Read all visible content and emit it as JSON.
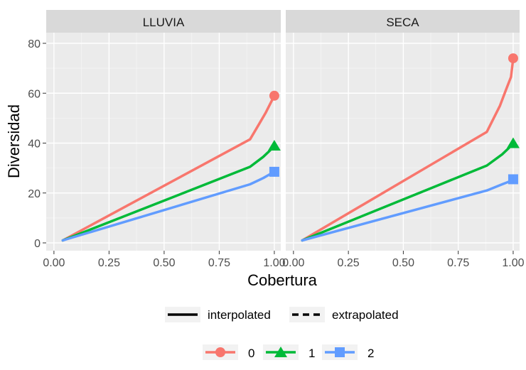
{
  "chart_data": {
    "type": "line",
    "xlabel": "Cobertura",
    "ylabel": "Diversidad",
    "xlim": [
      0.0,
      1.0
    ],
    "ylim": [
      0,
      85
    ],
    "x_ticks": [
      "0.00",
      "0.25",
      "0.50",
      "0.75",
      "1.00"
    ],
    "y_ticks": [
      "0",
      "20",
      "40",
      "60",
      "80"
    ],
    "grid": true,
    "legend_position": "bottom",
    "method_legend": [
      "interpolated",
      "extrapolated"
    ],
    "group_legend": [
      "0",
      "1",
      "2"
    ],
    "colors": {
      "0": "#F8766D",
      "1": "#00BA38",
      "2": "#619CFF"
    },
    "markers": {
      "0": "circle",
      "1": "triangle",
      "2": "square"
    },
    "panels": [
      {
        "name": "LLUVIA",
        "series": [
          {
            "name": "0",
            "x": [
              0.04,
              0.89,
              0.93,
              0.96,
              0.98,
              1.0
            ],
            "y": [
              1,
              41.5,
              47.5,
              52,
              55.5,
              59
            ]
          },
          {
            "name": "1",
            "x": [
              0.04,
              0.89,
              0.95,
              0.98,
              1.0
            ],
            "y": [
              1,
              30.5,
              34.5,
              37,
              39
            ]
          },
          {
            "name": "2",
            "x": [
              0.04,
              0.89,
              0.95,
              0.98,
              1.0
            ],
            "y": [
              1,
              23.5,
              26,
              27.5,
              28.5
            ]
          }
        ]
      },
      {
        "name": "SECA",
        "series": [
          {
            "name": "0",
            "x": [
              0.04,
              0.88,
              0.94,
              0.97,
              0.99,
              1.0
            ],
            "y": [
              1,
              44.5,
              55,
              62,
              66.5,
              74
            ]
          },
          {
            "name": "1",
            "x": [
              0.04,
              0.88,
              0.95,
              0.98,
              1.0
            ],
            "y": [
              1,
              31,
              35.5,
              38,
              40
            ]
          },
          {
            "name": "2",
            "x": [
              0.04,
              0.88,
              0.95,
              0.98,
              1.0
            ],
            "y": [
              1,
              21,
              23.5,
              24.5,
              25.5
            ]
          }
        ]
      }
    ]
  }
}
